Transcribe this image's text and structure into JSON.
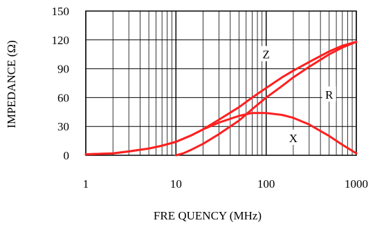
{
  "chart_data": {
    "type": "line",
    "xscale": "log",
    "xlim": [
      1,
      1000
    ],
    "ylim": [
      0,
      150
    ],
    "grid": true,
    "xlabel": "FRE QUENCY (MHz)",
    "ylabel": "IMPEDANCE (Ω)",
    "x_ticks": [
      {
        "value": 1,
        "label": "1"
      },
      {
        "value": 10,
        "label": "10"
      },
      {
        "value": 100,
        "label": "100"
      },
      {
        "value": 1000,
        "label": "1000"
      }
    ],
    "y_ticks": [
      {
        "value": 0,
        "label": "0"
      },
      {
        "value": 30,
        "label": "30"
      },
      {
        "value": 60,
        "label": "60"
      },
      {
        "value": 90,
        "label": "90"
      },
      {
        "value": 120,
        "label": "120"
      },
      {
        "value": 150,
        "label": "150"
      }
    ],
    "series_color": "#ff1f1f",
    "series": [
      {
        "name": "Z",
        "x": [
          1,
          2,
          3,
          5,
          7,
          10,
          15,
          20,
          30,
          50,
          70,
          100,
          150,
          200,
          300,
          500,
          700,
          1000
        ],
        "y": [
          1,
          2,
          4,
          7,
          10,
          14,
          21,
          27,
          37,
          50,
          60,
          70,
          81,
          88,
          97,
          108,
          114,
          118
        ]
      },
      {
        "name": "R",
        "x": [
          10,
          12,
          15,
          20,
          30,
          50,
          70,
          100,
          150,
          200,
          300,
          500,
          700,
          1000
        ],
        "y": [
          0,
          2,
          6,
          12,
          22,
          36,
          48,
          60,
          72,
          81,
          92,
          105,
          112,
          118
        ]
      },
      {
        "name": "X",
        "x": [
          1,
          2,
          3,
          5,
          7,
          10,
          15,
          20,
          30,
          50,
          70,
          100,
          150,
          200,
          300,
          500,
          700,
          1000
        ],
        "y": [
          1,
          2,
          4,
          7,
          10,
          14,
          21,
          27,
          34,
          41,
          44,
          44,
          42,
          39,
          32,
          20,
          11,
          2
        ]
      }
    ],
    "series_labels": [
      {
        "text": "Z",
        "x": 100,
        "y": 105
      },
      {
        "text": "R",
        "x": 500,
        "y": 63
      },
      {
        "text": "X",
        "x": 200,
        "y": 18
      }
    ]
  }
}
